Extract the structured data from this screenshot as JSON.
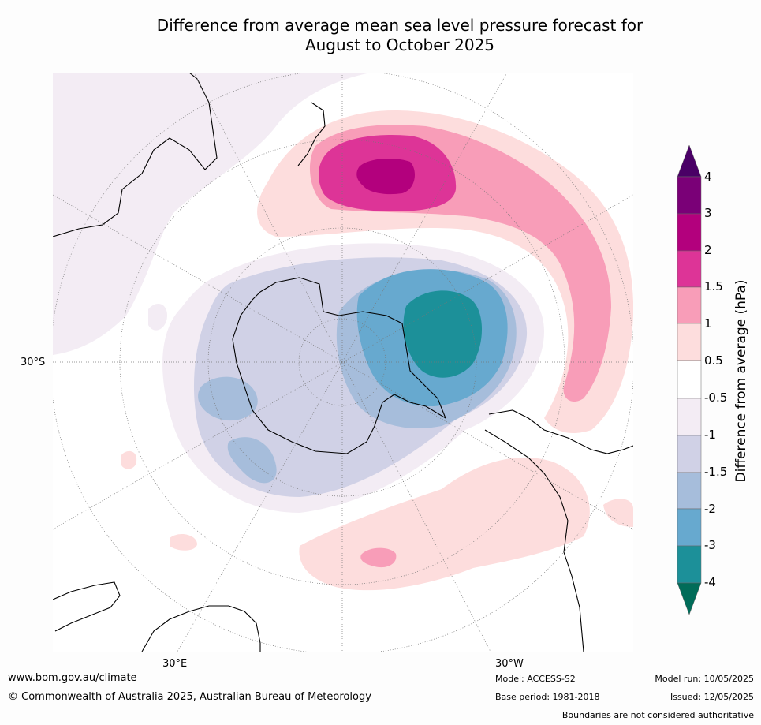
{
  "title_line1": "Difference from average mean sea level pressure forecast for",
  "title_line2": "August to October 2025",
  "map_labels": {
    "lat_label": "30°S",
    "lon_east": "30°E",
    "lon_west": "30°W"
  },
  "colorbar": {
    "label": "Difference from average (hPa)",
    "tick_labels": [
      "4",
      "3",
      "2",
      "1.5",
      "1",
      "0.5",
      "-0.5",
      "-1",
      "-1.5",
      "-2",
      "-3",
      "-4"
    ],
    "bins_top_to_bottom": [
      {
        "range": "above 4",
        "color": "#4a0066"
      },
      {
        "range": "3 to 4",
        "color": "#7a0077"
      },
      {
        "range": "2 to 3",
        "color": "#b3007d"
      },
      {
        "range": "1.5 to 2",
        "color": "#dd3497"
      },
      {
        "range": "1 to 1.5",
        "color": "#f89db8"
      },
      {
        "range": "0.5 to 1",
        "color": "#fddddd"
      },
      {
        "range": "-0.5 to 0.5",
        "color": "#ffffff"
      },
      {
        "range": "-1 to -0.5",
        "color": "#f3ecf4"
      },
      {
        "range": "-1.5 to -1",
        "color": "#d0d1e6"
      },
      {
        "range": "-2 to -1.5",
        "color": "#a6bddb"
      },
      {
        "range": "-3 to -2",
        "color": "#67a9cf"
      },
      {
        "range": "-4 to -3",
        "color": "#1c9099"
      },
      {
        "range": "below -4",
        "color": "#016c59"
      }
    ]
  },
  "footer": {
    "website": "www.bom.gov.au/climate",
    "copyright": "© Commonwealth of Australia 2025, Australian Bureau of Meteorology",
    "model": "Model: ACCESS-S2",
    "base_period": "Base period: 1981-2018",
    "model_run": "Model run: 10/05/2025",
    "issued": "Issued: 12/05/2025",
    "disclaimer": "Boundaries are not considered authoritative"
  }
}
